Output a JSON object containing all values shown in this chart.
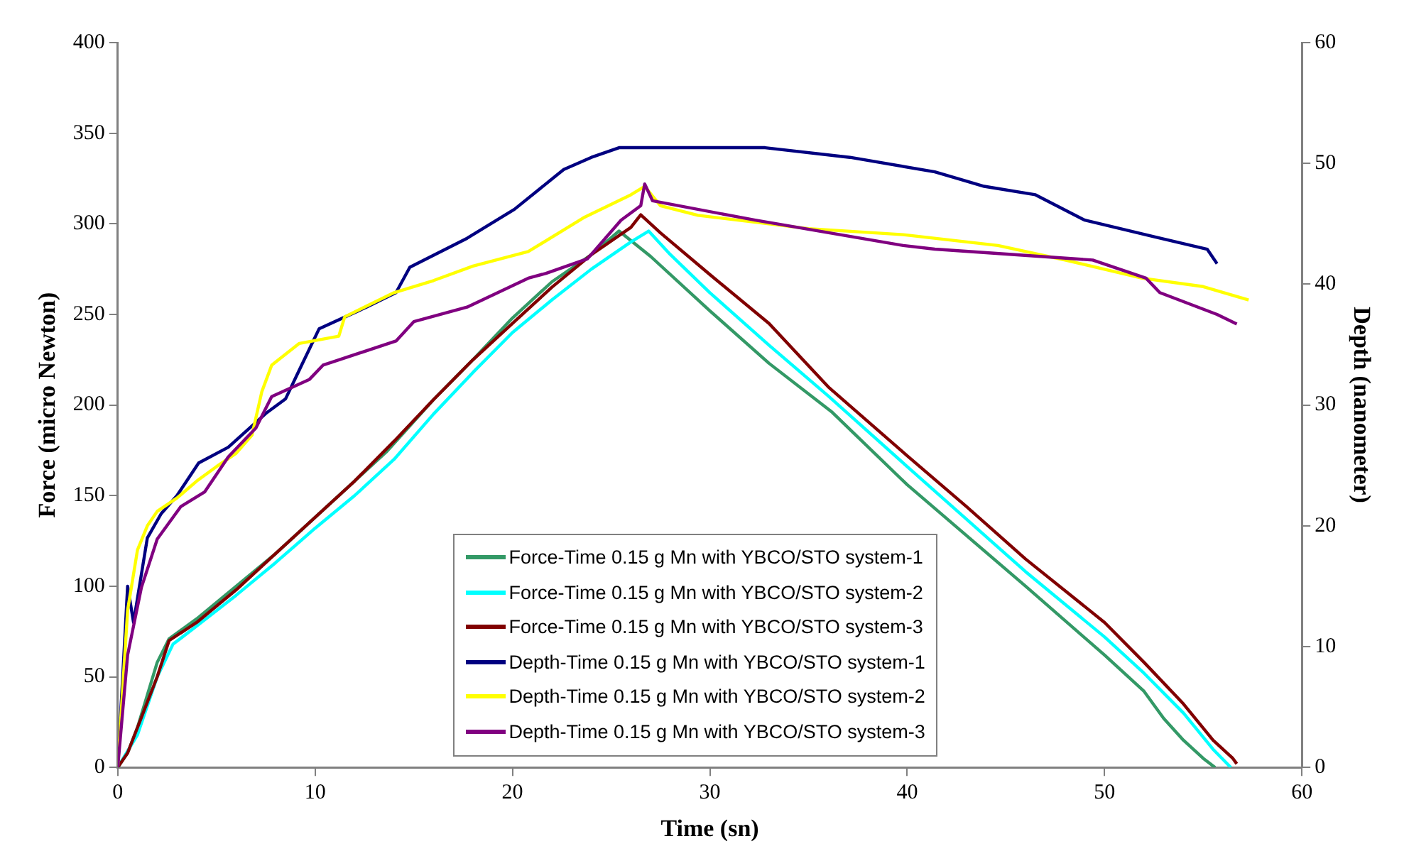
{
  "chart_data": {
    "type": "line",
    "xlabel": "Time (sn)",
    "ylabel": "Force (micro Newton)",
    "y2label": "Depth (nanometer)",
    "xlim": [
      0,
      60
    ],
    "xticks": [
      0,
      10,
      20,
      30,
      40,
      50,
      60
    ],
    "ylim": [
      0,
      400
    ],
    "yticks": [
      0,
      50,
      100,
      150,
      200,
      250,
      300,
      350,
      400
    ],
    "y2lim": [
      0,
      60
    ],
    "y2ticks": [
      0,
      10,
      20,
      30,
      40,
      50,
      60
    ],
    "grid": false,
    "legend": "bottom",
    "marker": "none",
    "line_style": "solid",
    "series": [
      {
        "name": "Force-Time 0.15 g Mn with YBCO/STO system-1",
        "color": "#339966",
        "x": [
          0,
          0.5,
          1,
          1.5,
          2,
          2.6,
          4,
          6,
          8,
          10,
          12,
          13.6,
          16,
          18,
          20,
          22,
          24,
          25.4,
          27,
          30,
          33,
          36.2,
          40,
          43,
          46,
          50,
          52,
          53,
          54,
          55,
          55.6
        ],
        "values": [
          0,
          8,
          22,
          40,
          58,
          71,
          82,
          100,
          118,
          138,
          158,
          174,
          203,
          225,
          248,
          268,
          283,
          296,
          282,
          252,
          223,
          196,
          156,
          128,
          100,
          62,
          42,
          27,
          15,
          5,
          0
        ]
      },
      {
        "name": "Force-Time 0.15 g Mn with YBCO/STO system-2",
        "color": "#00ffff",
        "x": [
          0,
          1,
          2,
          2.8,
          4,
          6,
          8,
          10,
          12,
          14,
          16,
          18,
          20,
          22,
          24,
          26,
          26.9,
          28,
          30,
          33,
          36,
          40,
          43,
          46,
          50,
          52,
          54,
          55.5,
          56.4
        ],
        "values": [
          0,
          18,
          50,
          68,
          78,
          95,
          113,
          132,
          150,
          170,
          195,
          218,
          240,
          258,
          275,
          290,
          296,
          283,
          262,
          233,
          205,
          166,
          137,
          108,
          72,
          52,
          30,
          10,
          0
        ]
      },
      {
        "name": "Force-Time 0.15 g Mn with YBCO/STO system-3",
        "color": "#800000",
        "x": [
          0,
          0.5,
          1,
          2,
          2.6,
          4,
          6,
          8,
          10,
          12,
          14,
          16,
          18,
          20,
          22,
          24,
          26,
          26.5,
          27.5,
          30,
          33,
          36,
          40,
          43,
          46,
          50,
          52,
          54,
          55.5,
          56.5,
          56.7
        ],
        "values": [
          0,
          8,
          22,
          50,
          70,
          80,
          98,
          118,
          138,
          158,
          180,
          203,
          225,
          245,
          265,
          283,
          298,
          305,
          295,
          272,
          245,
          210,
          172,
          144,
          115,
          80,
          58,
          35,
          15,
          5,
          2
        ]
      },
      {
        "name": "Depth-Time 0.15 g Mn with YBCO/STO system-1",
        "color": "#000080",
        "axis": "y2",
        "x": [
          0,
          0.5,
          0.8,
          1,
          1.5,
          2.2,
          3,
          4.1,
          5.6,
          7.5,
          8.5,
          9.2,
          10.2,
          12.6,
          14.1,
          14.8,
          17.7,
          20.1,
          22.6,
          24,
          25.4,
          32.8,
          37.1,
          41.4,
          43.9,
          46.5,
          49,
          52.6,
          55.2,
          55.7
        ],
        "values": [
          0,
          15,
          12,
          14,
          19,
          21,
          22.5,
          25.2,
          26.5,
          29.3,
          30.5,
          32.9,
          36.3,
          38.1,
          39.3,
          41.4,
          43.8,
          46.2,
          49.5,
          50.5,
          51.3,
          51.3,
          50.5,
          49.3,
          48.1,
          47.4,
          45.3,
          43.9,
          42.9,
          41.7
        ]
      },
      {
        "name": "Depth-Time 0.15 g Mn with YBCO/STO system-2",
        "color": "#ffff00",
        "axis": "y2",
        "x": [
          0,
          0.5,
          1,
          1.5,
          2,
          3,
          4,
          5,
          6,
          6.8,
          7.3,
          7.8,
          9.2,
          11.2,
          11.5,
          14,
          16,
          18,
          20.8,
          23.6,
          26,
          26.7,
          27.5,
          29.4,
          35,
          39.8,
          44.6,
          48,
          51.9,
          55,
          57.3
        ],
        "values": [
          0,
          13,
          18,
          20,
          21.2,
          22.3,
          23.7,
          24.9,
          26,
          27.5,
          31.1,
          33.3,
          35.1,
          35.7,
          37.3,
          39.3,
          40.3,
          41.5,
          42.7,
          45.5,
          47.4,
          48.1,
          46.5,
          45.7,
          44.6,
          44.1,
          43.2,
          42,
          40.5,
          39.8,
          38.7
        ]
      },
      {
        "name": "Depth-Time 0.15 g Mn with YBCO/STO system-3",
        "color": "#800080",
        "axis": "y2",
        "x": [
          0,
          0.5,
          1.2,
          2,
          3.2,
          4.4,
          5.6,
          7,
          7.8,
          9.7,
          10.4,
          14.1,
          15,
          17.7,
          20.8,
          21.7,
          23.8,
          25.5,
          26.5,
          26.7,
          27.1,
          32.3,
          39.8,
          41.4,
          49.4,
          52.1,
          52.8,
          55.7,
          56.7
        ],
        "values": [
          0,
          9.3,
          14.9,
          18.9,
          21.6,
          22.8,
          25.7,
          28.1,
          30.7,
          32.1,
          33.3,
          35.3,
          36.9,
          38.1,
          40.5,
          40.9,
          42.1,
          45.3,
          46.5,
          48.3,
          46.9,
          45.3,
          43.2,
          42.9,
          42,
          40.5,
          39.3,
          37.5,
          36.7
        ]
      }
    ]
  }
}
